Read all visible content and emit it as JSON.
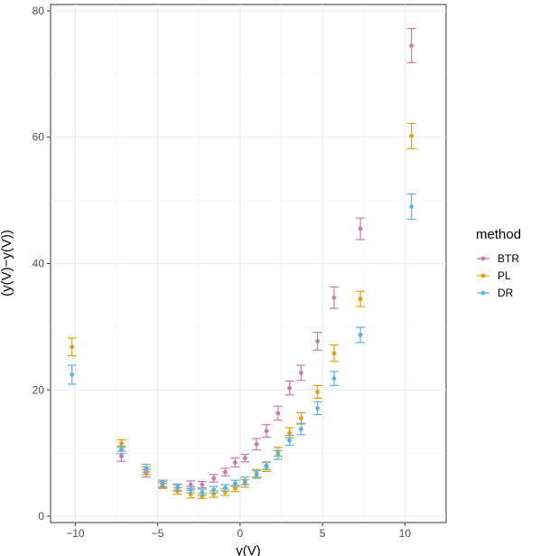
{
  "chart_data": {
    "type": "scatter",
    "xlabel": "y(V)",
    "ylabel": "(y(V)−y(V))",
    "xlim": [
      -11.5,
      12.5
    ],
    "ylim": [
      -1,
      81
    ],
    "x_ticks": [
      -10,
      -5,
      0,
      5,
      10
    ],
    "y_ticks": [
      0,
      20,
      40,
      60,
      80
    ],
    "x_tick_labels": [
      "−10",
      "−5",
      "0",
      "5",
      "10"
    ],
    "y_tick_labels": [
      "0",
      "20",
      "40",
      "60",
      "80"
    ],
    "grid": true,
    "legend": {
      "title": "method",
      "position": "right"
    },
    "series": [
      {
        "name": "BTR",
        "color": "#CC79A7",
        "x": [
          -7.2,
          -5.7,
          -4.7,
          -3.8,
          -3.0,
          -2.3,
          -1.6,
          -0.9,
          -0.3,
          0.3,
          1.0,
          1.6,
          2.3,
          3.0,
          3.7,
          4.7,
          5.7,
          7.3,
          10.4
        ],
        "y": [
          9.5,
          6.8,
          5.0,
          4.5,
          5.0,
          5.0,
          6.0,
          7.0,
          8.5,
          9.2,
          11.4,
          13.5,
          16.3,
          20.3,
          22.7,
          27.7,
          34.6,
          45.5,
          74.5
        ],
        "err": [
          0.8,
          0.6,
          0.5,
          0.5,
          0.6,
          0.5,
          0.6,
          0.6,
          0.7,
          0.6,
          0.9,
          1.0,
          1.1,
          1.1,
          1.2,
          1.4,
          1.7,
          1.7,
          2.7
        ]
      },
      {
        "name": "PL",
        "color": "#E69F00",
        "x": [
          -10.2,
          -7.2,
          -5.7,
          -4.7,
          -3.8,
          -3.0,
          -2.3,
          -1.6,
          -0.9,
          -0.3,
          0.3,
          1.0,
          1.6,
          2.3,
          3.0,
          3.7,
          4.7,
          5.7,
          7.3,
          10.4
        ],
        "y": [
          26.8,
          11.5,
          7.2,
          4.8,
          4.0,
          3.5,
          3.2,
          3.5,
          3.8,
          4.4,
          5.2,
          6.8,
          7.8,
          10.2,
          13.2,
          15.5,
          19.7,
          25.8,
          34.4,
          60.2
        ],
        "err": [
          1.4,
          0.6,
          0.6,
          0.4,
          0.5,
          0.6,
          0.4,
          0.5,
          0.5,
          0.5,
          0.6,
          0.6,
          0.7,
          0.7,
          0.8,
          0.9,
          1.0,
          1.3,
          1.2,
          2.0
        ]
      },
      {
        "name": "DR",
        "color": "#56B4E9",
        "x": [
          -10.2,
          -7.2,
          -5.7,
          -4.7,
          -3.8,
          -3.0,
          -2.3,
          -1.6,
          -0.9,
          -0.3,
          0.3,
          1.0,
          1.6,
          2.3,
          3.0,
          3.7,
          4.7,
          5.7,
          7.3,
          10.4
        ],
        "y": [
          22.4,
          10.5,
          7.6,
          5.2,
          4.6,
          4.2,
          3.8,
          4.2,
          4.5,
          5.2,
          5.6,
          6.6,
          8.0,
          9.7,
          12.0,
          13.8,
          17.1,
          21.8,
          28.7,
          49.0
        ],
        "err": [
          1.5,
          0.6,
          0.6,
          0.5,
          0.5,
          0.5,
          0.5,
          0.5,
          0.5,
          0.5,
          0.6,
          0.6,
          0.6,
          0.7,
          0.8,
          0.9,
          1.0,
          1.1,
          1.2,
          2.0
        ]
      }
    ]
  }
}
